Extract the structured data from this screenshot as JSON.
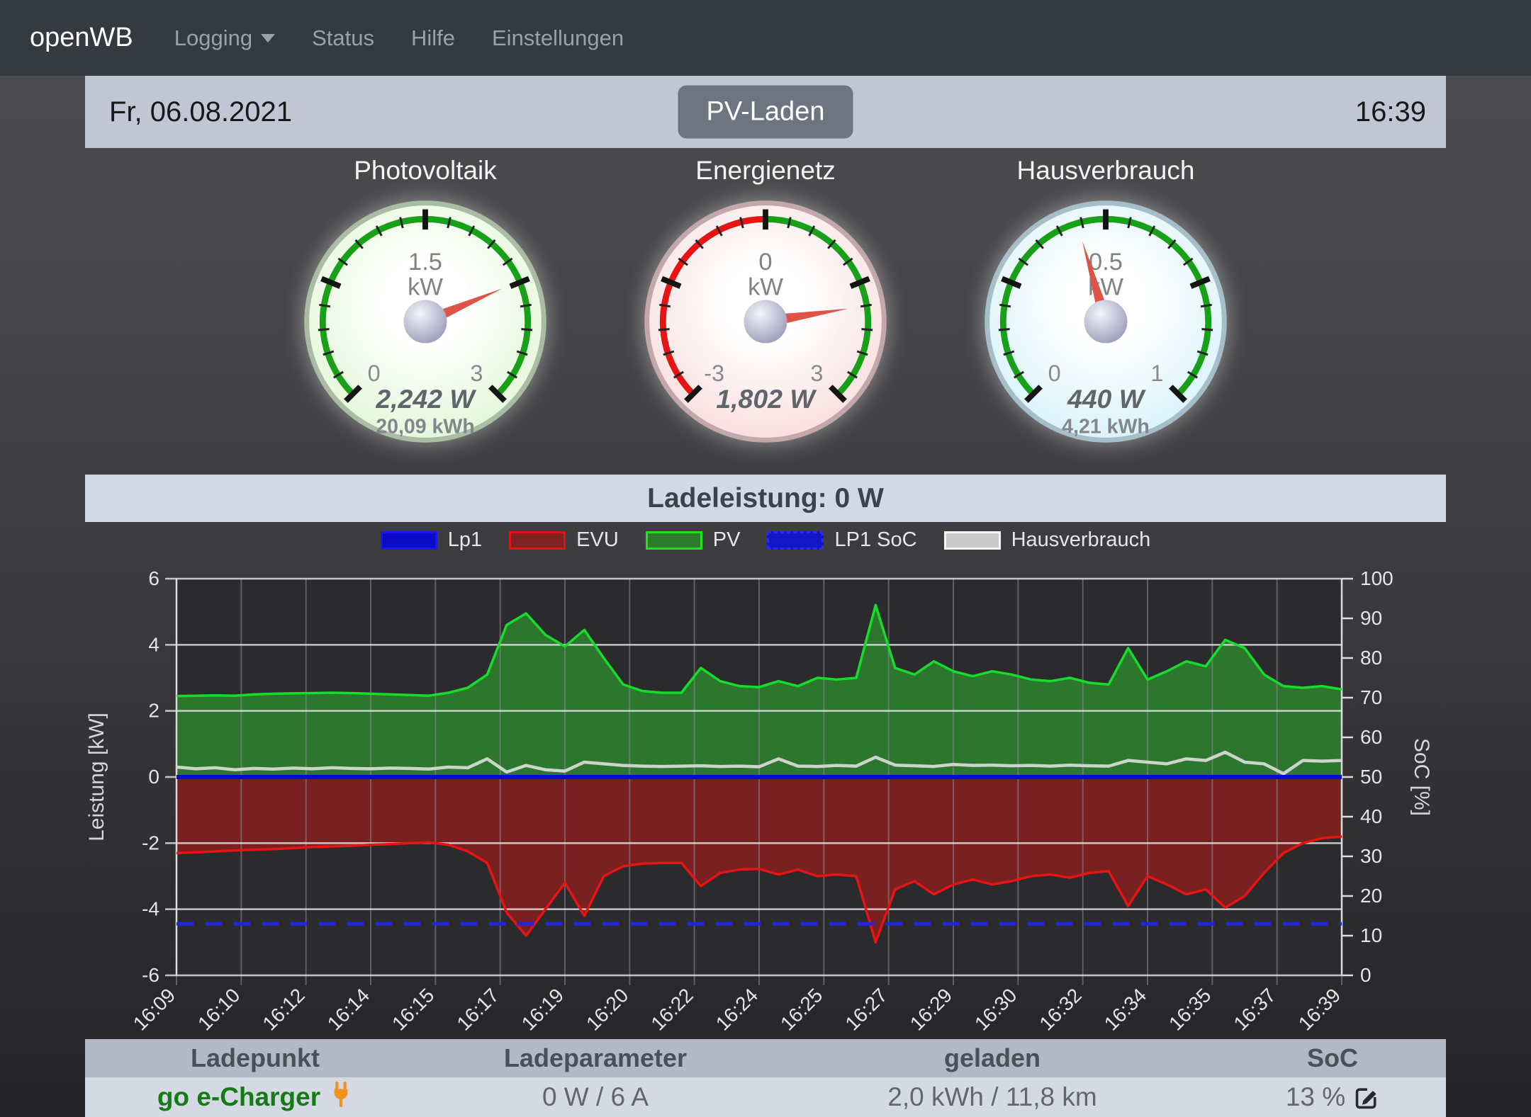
{
  "nav": {
    "brand": "openWB",
    "items": [
      {
        "label": "Logging",
        "caret": true
      },
      {
        "label": "Status",
        "caret": false
      },
      {
        "label": "Hilfe",
        "caret": false
      },
      {
        "label": "Einstellungen",
        "caret": false
      }
    ]
  },
  "header": {
    "date": "Fr, 06.08.2021",
    "mode_button": "PV-Laden",
    "time": "16:39"
  },
  "gauges": [
    {
      "title": "Photovoltaik",
      "min": 0,
      "max": 3000,
      "min_label": "0",
      "max_label": "3",
      "top_label": "1.5",
      "unit": "kW",
      "value": 2242,
      "value_text": "2,242 W",
      "sub_text": "20,09 kWh",
      "face_color": "#ddf6d0",
      "ring_color": "#a9bda4",
      "arc": "green"
    },
    {
      "title": "Energienetz",
      "min": -3000,
      "max": 3000,
      "min_label": "-3",
      "max_label": "3",
      "top_label": "0",
      "unit": "kW",
      "value": 1802,
      "value_text": "1,802 W",
      "sub_text": "",
      "face_color": "#f8d7d7",
      "ring_color": "#c2a7ab",
      "arc": "red-green"
    },
    {
      "title": "Hausverbrauch",
      "min": 0,
      "max": 1000,
      "min_label": "0",
      "max_label": "1",
      "top_label": "0.5",
      "unit": "kW",
      "value": 440,
      "value_text": "440 W",
      "sub_text": "4,21 kWh",
      "face_color": "#d2f0fa",
      "ring_color": "#a5bec8",
      "arc": "green"
    }
  ],
  "section_header": {
    "label": "Ladeleistung: 0 W"
  },
  "chart_data": {
    "type": "area",
    "title": "Ladeleistung: 0 W",
    "ylabel_left": "Leistung [kW]",
    "ylabel_right": "SoC [%]",
    "ylim_left": [
      -6,
      6
    ],
    "y_ticks_left": [
      6,
      4,
      2,
      0,
      -2,
      -4,
      -6
    ],
    "ylim_right": [
      0,
      100
    ],
    "y_ticks_right": [
      100,
      90,
      80,
      70,
      60,
      50,
      40,
      30,
      20,
      10,
      0
    ],
    "x_tick_labels": [
      "16:09",
      "16:10",
      "16:12",
      "16:14",
      "16:15",
      "16:17",
      "16:19",
      "16:20",
      "16:22",
      "16:24",
      "16:25",
      "16:27",
      "16:29",
      "16:30",
      "16:32",
      "16:34",
      "16:35",
      "16:37",
      "16:39"
    ],
    "x_span_minutes": 30,
    "sample_step_min": 0.5,
    "grid": true,
    "legend_position": "top-center",
    "legend": [
      {
        "label": "Lp1",
        "fill": "#0b0bc8",
        "border": "#1a1ae6",
        "dashed": false
      },
      {
        "label": "EVU",
        "fill": "#7e2222",
        "border": "#e01414",
        "dashed": false
      },
      {
        "label": "PV",
        "fill": "#2d7c2d",
        "border": "#20e020",
        "dashed": false
      },
      {
        "label": "LP1 SoC",
        "fill": "#1515c8",
        "border": "#2a2ae8",
        "dashed": true
      },
      {
        "label": "Hausverbrauch",
        "fill": "#c9c9c9",
        "border": "#f4f4f4",
        "dashed": false
      }
    ],
    "series": [
      {
        "name": "EVU",
        "axis": "left",
        "type": "area",
        "color": "#e81414",
        "fill": "#7d2020",
        "values": [
          -2.3,
          -2.28,
          -2.25,
          -2.22,
          -2.2,
          -2.18,
          -2.15,
          -2.12,
          -2.1,
          -2.08,
          -2.05,
          -2.03,
          -2.0,
          -1.98,
          -2.05,
          -2.25,
          -2.6,
          -4.1,
          -4.8,
          -4.0,
          -3.2,
          -4.2,
          -3.0,
          -2.7,
          -2.62,
          -2.6,
          -2.6,
          -3.3,
          -2.9,
          -2.8,
          -2.78,
          -2.95,
          -2.8,
          -3.0,
          -2.95,
          -3.0,
          -5.0,
          -3.4,
          -3.15,
          -3.55,
          -3.25,
          -3.1,
          -3.25,
          -3.15,
          -3.0,
          -2.95,
          -3.05,
          -2.9,
          -2.85,
          -3.9,
          -3.0,
          -3.25,
          -3.55,
          -3.4,
          -3.95,
          -3.6,
          -2.9,
          -2.3,
          -2.0,
          -1.85,
          -1.8
        ]
      },
      {
        "name": "PV",
        "axis": "left",
        "type": "area",
        "color": "#16dd2c",
        "fill": "#2d7a2e",
        "values": [
          2.45,
          2.46,
          2.47,
          2.46,
          2.5,
          2.52,
          2.53,
          2.54,
          2.55,
          2.54,
          2.52,
          2.5,
          2.48,
          2.46,
          2.55,
          2.7,
          3.1,
          4.6,
          4.95,
          4.3,
          3.95,
          4.45,
          3.6,
          2.8,
          2.6,
          2.55,
          2.55,
          3.3,
          2.9,
          2.75,
          2.72,
          2.9,
          2.75,
          3.0,
          2.95,
          3.0,
          5.2,
          3.3,
          3.1,
          3.5,
          3.2,
          3.05,
          3.2,
          3.1,
          2.95,
          2.9,
          3.0,
          2.85,
          2.8,
          3.9,
          2.95,
          3.2,
          3.5,
          3.35,
          4.15,
          3.9,
          3.1,
          2.75,
          2.7,
          2.75,
          2.65
        ]
      },
      {
        "name": "Hausverbrauch",
        "axis": "left",
        "type": "line",
        "color": "#ccd4cb",
        "values": [
          0.3,
          0.25,
          0.28,
          0.22,
          0.26,
          0.24,
          0.27,
          0.25,
          0.28,
          0.26,
          0.25,
          0.27,
          0.26,
          0.24,
          0.3,
          0.28,
          0.55,
          0.15,
          0.35,
          0.22,
          0.18,
          0.45,
          0.4,
          0.35,
          0.33,
          0.32,
          0.33,
          0.34,
          0.32,
          0.33,
          0.31,
          0.55,
          0.33,
          0.32,
          0.35,
          0.33,
          0.6,
          0.36,
          0.34,
          0.32,
          0.38,
          0.35,
          0.36,
          0.34,
          0.35,
          0.33,
          0.36,
          0.34,
          0.33,
          0.5,
          0.45,
          0.4,
          0.55,
          0.5,
          0.75,
          0.45,
          0.4,
          0.1,
          0.5,
          0.48,
          0.5
        ]
      },
      {
        "name": "Lp1",
        "axis": "left",
        "type": "line",
        "color": "#0a0ad2",
        "width": 6,
        "constant": 0
      },
      {
        "name": "LP1 SoC",
        "axis": "right",
        "type": "dashed-line",
        "color": "#2525dd",
        "width": 5,
        "constant": 13
      }
    ]
  },
  "table": {
    "headers": [
      "Ladepunkt",
      "Ladeparameter",
      "geladen",
      "SoC"
    ],
    "rows": [
      {
        "ladepunkt": "go e-Charger",
        "ladeparameter": "0 W / 6 A",
        "geladen": "2,0 kWh / 11,8 km",
        "soc": "13 %"
      }
    ]
  }
}
